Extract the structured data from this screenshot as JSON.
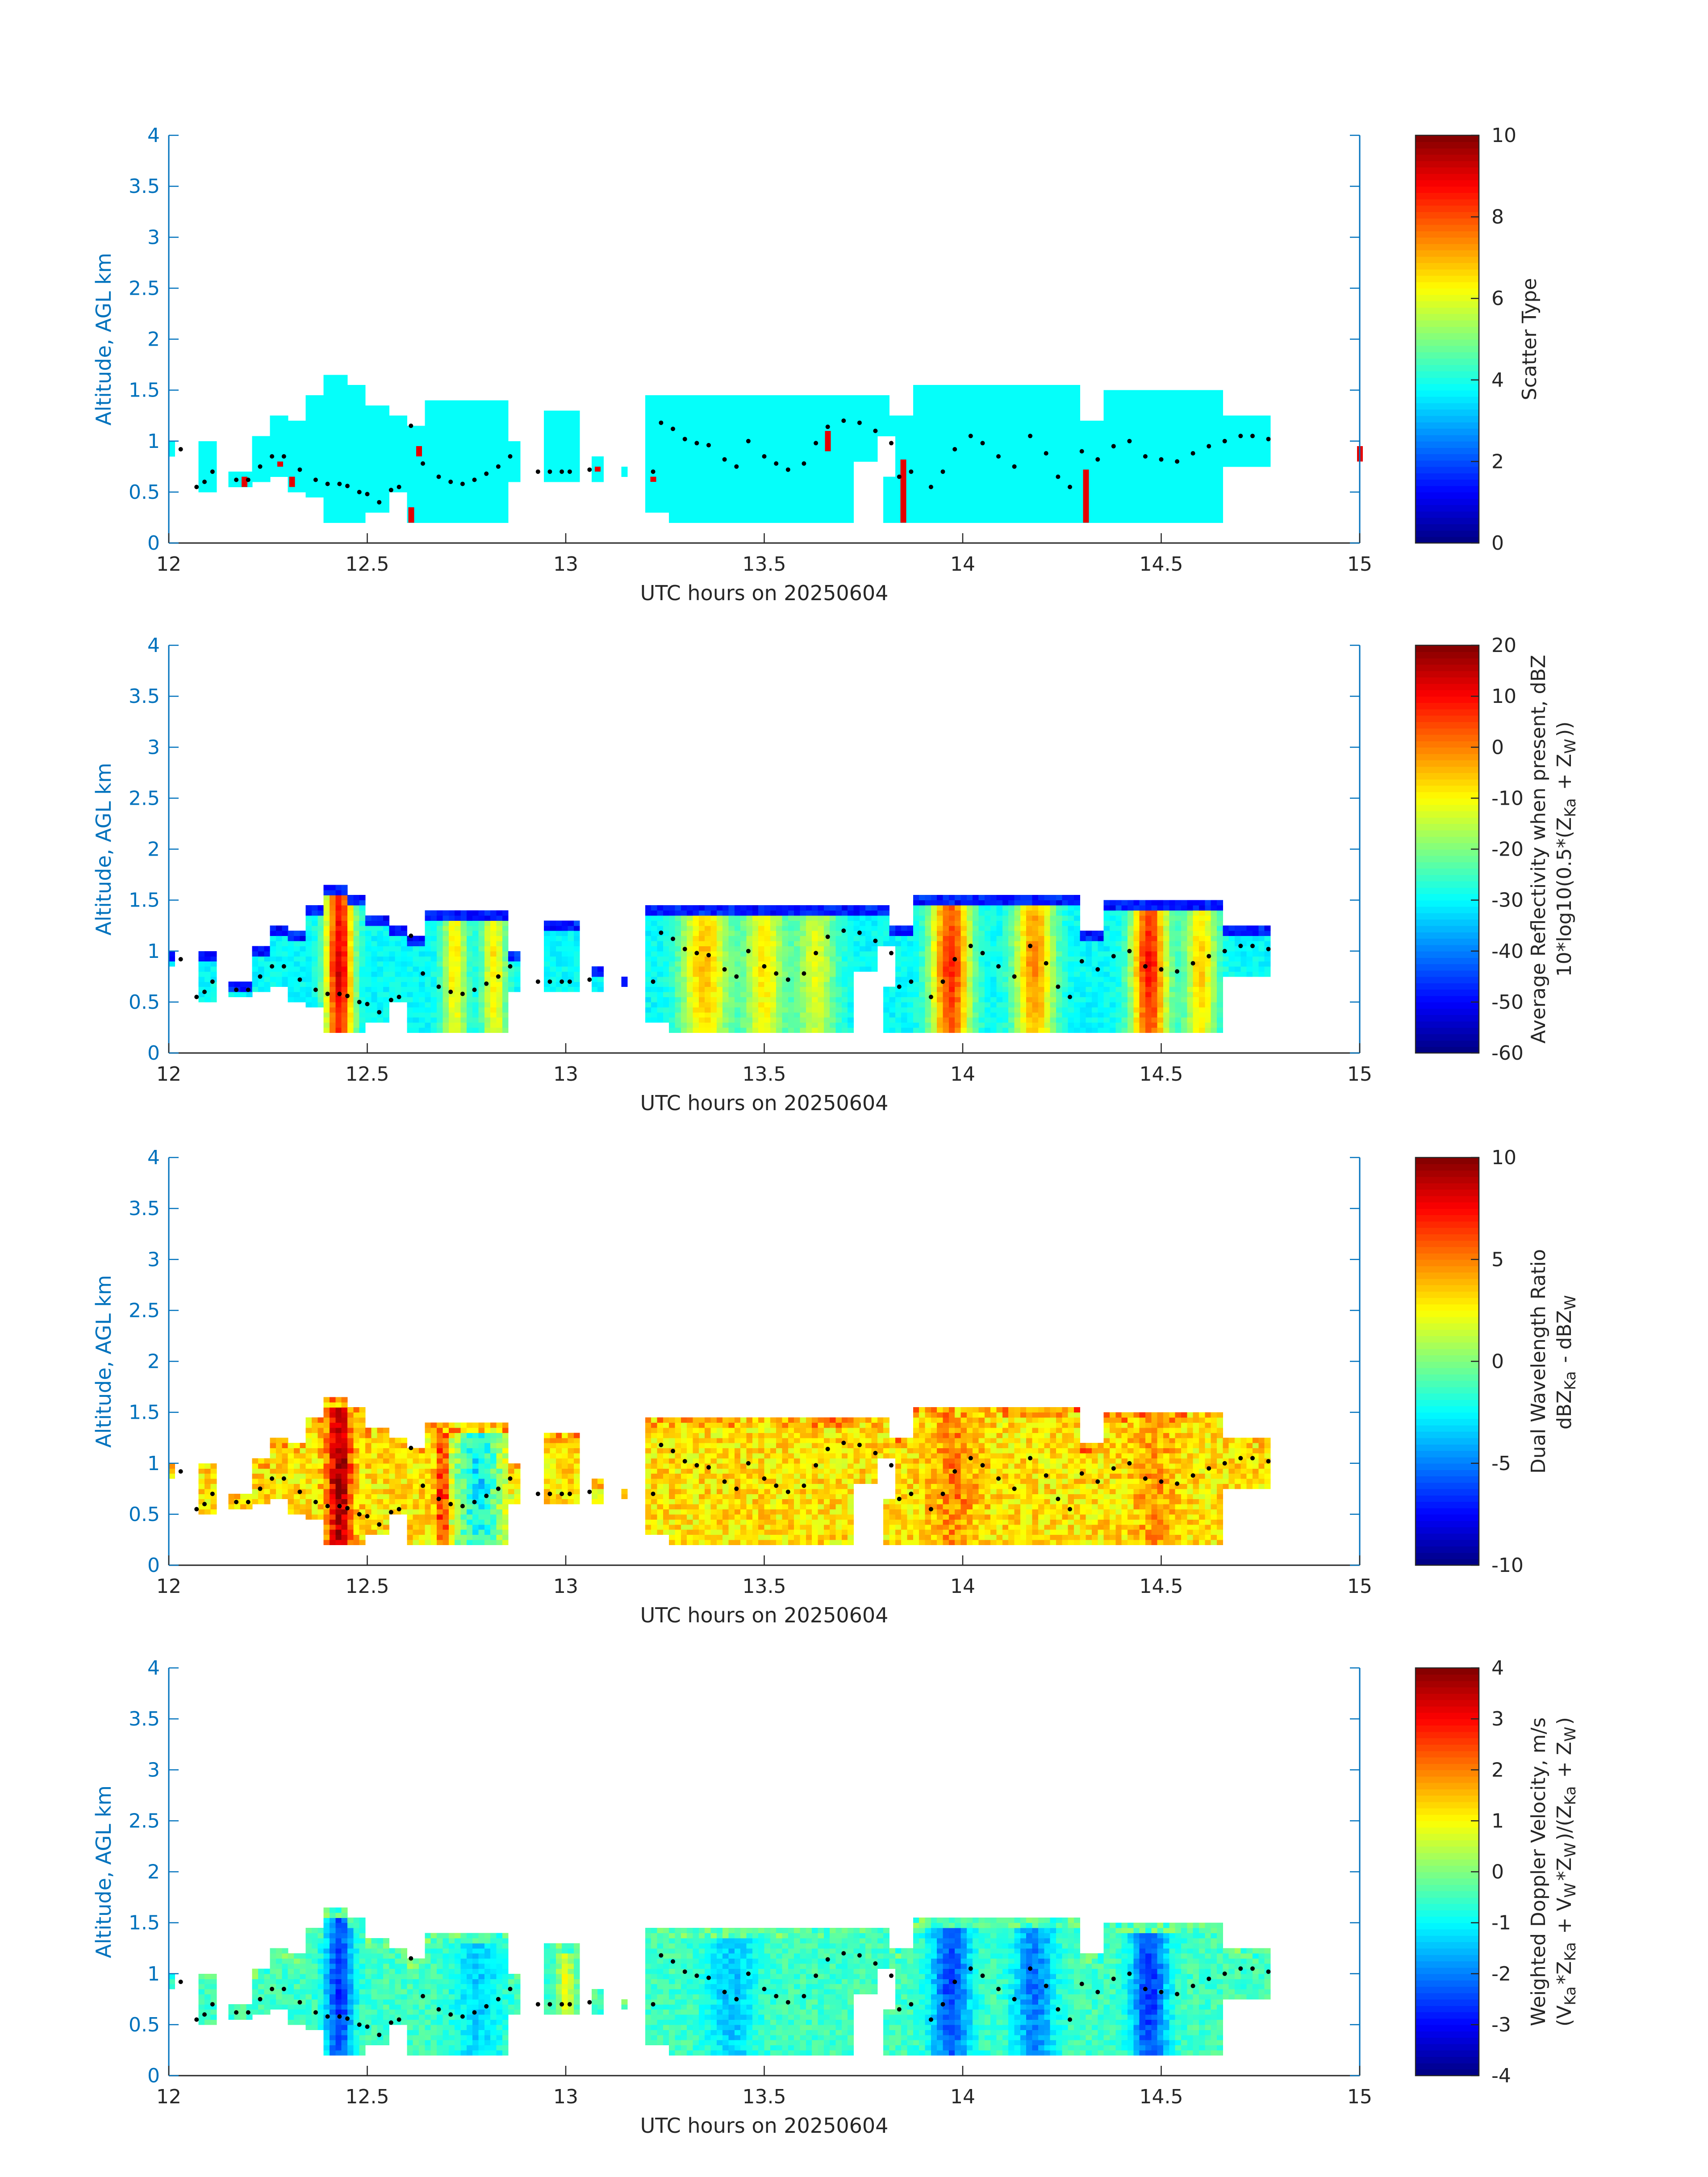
{
  "figure": {
    "xlabel": "UTC hours on 20250604",
    "ylabel": "Altitude, AGL km",
    "axis_color": "#0072bd",
    "text_color": "#262626"
  },
  "chart_data": [
    {
      "type": "heatmap",
      "xlim": [
        12,
        15
      ],
      "ylim": [
        0,
        4
      ],
      "x_ticks": [
        "12",
        "12.5",
        "13",
        "13.5",
        "14",
        "14.5",
        "15"
      ],
      "y_ticks": [
        "0",
        "0.5",
        "1",
        "1.5",
        "2",
        "2.5",
        "3",
        "3.5",
        "4"
      ],
      "colorbar": {
        "label": "Scatter Type",
        "label2": "",
        "min": 0,
        "max": 10,
        "ticks": [
          "0",
          "2",
          "4",
          "6",
          "8",
          "10"
        ]
      },
      "mode": "uniform",
      "uniform_value": 3.8,
      "spikes": [
        {
          "x": 12.19,
          "y0": 0.55,
          "y1": 0.65,
          "value": 9.0
        },
        {
          "x": 12.28,
          "y0": 0.75,
          "y1": 0.8,
          "value": 9.0
        },
        {
          "x": 12.31,
          "y0": 0.55,
          "y1": 0.65,
          "value": 9.0
        },
        {
          "x": 12.61,
          "y0": 0.2,
          "y1": 0.35,
          "value": 9.0
        },
        {
          "x": 12.63,
          "y0": 0.85,
          "y1": 0.95,
          "value": 9.0
        },
        {
          "x": 13.08,
          "y0": 0.7,
          "y1": 0.75,
          "value": 9.0
        },
        {
          "x": 13.22,
          "y0": 0.6,
          "y1": 0.65,
          "value": 9.0
        },
        {
          "x": 13.66,
          "y0": 0.9,
          "y1": 1.1,
          "value": 9.0
        },
        {
          "x": 13.85,
          "y0": 0.2,
          "y1": 0.82,
          "value": 9.0
        },
        {
          "x": 14.31,
          "y0": 0.2,
          "y1": 0.72,
          "value": 9.0
        },
        {
          "x": 15.0,
          "y0": 0.8,
          "y1": 0.95,
          "value": 9.0
        }
      ]
    },
    {
      "type": "heatmap",
      "xlim": [
        12,
        15
      ],
      "ylim": [
        0,
        4
      ],
      "x_ticks": [
        "12",
        "12.5",
        "13",
        "13.5",
        "14",
        "14.5",
        "15"
      ],
      "y_ticks": [
        "0",
        "0.5",
        "1",
        "1.5",
        "2",
        "2.5",
        "3",
        "3.5",
        "4"
      ],
      "colorbar": {
        "label": "Average Reflectivity when present, dBZ",
        "label2": "10*log10(0.5*(Z_Ka + Z_W))",
        "min": -60,
        "max": 20,
        "ticks": [
          "-60",
          "-50",
          "-40",
          "-30",
          "-20",
          "-10",
          "0",
          "10",
          "20"
        ]
      },
      "mode": "field",
      "seed": 11,
      "noise": 2.5,
      "edge_value": -48,
      "base_value": -30,
      "cores": [
        {
          "x": 12.43,
          "w": 0.035,
          "amp": 44
        },
        {
          "x": 12.72,
          "w": 0.03,
          "amp": 22
        },
        {
          "x": 12.82,
          "w": 0.03,
          "amp": 22
        },
        {
          "x": 13.35,
          "w": 0.06,
          "amp": 26
        },
        {
          "x": 13.5,
          "w": 0.05,
          "amp": 22
        },
        {
          "x": 13.63,
          "w": 0.05,
          "amp": 18
        },
        {
          "x": 13.97,
          "w": 0.05,
          "amp": 38
        },
        {
          "x": 14.18,
          "w": 0.05,
          "amp": 30
        },
        {
          "x": 14.47,
          "w": 0.045,
          "amp": 40
        },
        {
          "x": 14.6,
          "w": 0.04,
          "amp": 24
        }
      ]
    },
    {
      "type": "heatmap",
      "xlim": [
        12,
        15
      ],
      "ylim": [
        0,
        4
      ],
      "x_ticks": [
        "12",
        "12.5",
        "13",
        "13.5",
        "14",
        "14.5",
        "15"
      ],
      "y_ticks": [
        "0",
        "0.5",
        "1",
        "1.5",
        "2",
        "2.5",
        "3",
        "3.5",
        "4"
      ],
      "colorbar": {
        "label": "Dual Wavelength Ratio",
        "label2": "dBZ_Ka - dBZ_W",
        "min": -10,
        "max": 10,
        "ticks": [
          "-10",
          "-5",
          "0",
          "5",
          "10"
        ]
      },
      "mode": "field",
      "seed": 23,
      "noise": 1.5,
      "edge_value": 4,
      "base_value": 3,
      "cores": [
        {
          "x": 12.43,
          "w": 0.03,
          "amp": 7
        },
        {
          "x": 12.69,
          "w": 0.015,
          "amp": 5
        },
        {
          "x": 12.78,
          "w": 0.06,
          "amp": -6
        },
        {
          "x": 13.98,
          "w": 0.06,
          "amp": 2
        },
        {
          "x": 14.48,
          "w": 0.05,
          "amp": 1.5
        }
      ]
    },
    {
      "type": "heatmap",
      "xlim": [
        12,
        15
      ],
      "ylim": [
        0,
        4
      ],
      "x_ticks": [
        "12",
        "12.5",
        "13",
        "13.5",
        "14",
        "14.5",
        "15"
      ],
      "y_ticks": [
        "0",
        "0.5",
        "1",
        "1.5",
        "2",
        "2.5",
        "3",
        "3.5",
        "4"
      ],
      "colorbar": {
        "label": "Weighted Doppler Velocity, m/s",
        "label2": "(V_Ka*Z_Ka + V_W*Z_W)/(Z_Ka + Z_W)",
        "min": -4,
        "max": 4,
        "ticks": [
          "-4",
          "-3",
          "-2",
          "-1",
          "0",
          "1",
          "2",
          "3",
          "4"
        ]
      },
      "mode": "field",
      "seed": 37,
      "noise": 0.35,
      "edge_value": -0.3,
      "base_value": -0.5,
      "cores": [
        {
          "x": 12.43,
          "w": 0.035,
          "amp": -2.2
        },
        {
          "x": 12.78,
          "w": 0.06,
          "amp": -0.9
        },
        {
          "x": 13.0,
          "w": 0.02,
          "amp": 1.3
        },
        {
          "x": 13.42,
          "w": 0.06,
          "amp": -1.0
        },
        {
          "x": 13.97,
          "w": 0.05,
          "amp": -2.0
        },
        {
          "x": 14.18,
          "w": 0.05,
          "amp": -1.6
        },
        {
          "x": 14.47,
          "w": 0.045,
          "amp": -2.2
        }
      ]
    }
  ],
  "echo_mask": [
    {
      "x0": 12.0,
      "x1": 12.01,
      "y0": 0.85,
      "y1": 1.0
    },
    {
      "x0": 12.07,
      "x1": 12.12,
      "y0": 0.5,
      "y1": 1.0
    },
    {
      "x0": 12.15,
      "x1": 12.21,
      "y0": 0.55,
      "y1": 0.7
    },
    {
      "x0": 12.21,
      "x1": 12.26,
      "y0": 0.6,
      "y1": 1.05
    },
    {
      "x0": 12.26,
      "x1": 12.3,
      "y0": 0.65,
      "y1": 1.25
    },
    {
      "x0": 12.3,
      "x1": 12.34,
      "y0": 0.5,
      "y1": 1.2
    },
    {
      "x0": 12.34,
      "x1": 12.39,
      "y0": 0.45,
      "y1": 1.45
    },
    {
      "x0": 12.39,
      "x1": 12.45,
      "y0": 0.2,
      "y1": 1.65
    },
    {
      "x0": 12.45,
      "x1": 12.5,
      "y0": 0.2,
      "y1": 1.55
    },
    {
      "x0": 12.5,
      "x1": 12.55,
      "y0": 0.3,
      "y1": 1.35
    },
    {
      "x0": 12.55,
      "x1": 12.6,
      "y0": 0.5,
      "y1": 1.25
    },
    {
      "x0": 12.6,
      "x1": 12.65,
      "y0": 0.2,
      "y1": 1.15
    },
    {
      "x0": 12.65,
      "x1": 12.86,
      "y0": 0.2,
      "y1": 1.4
    },
    {
      "x0": 12.86,
      "x1": 12.88,
      "y0": 0.6,
      "y1": 1.0
    },
    {
      "x0": 12.94,
      "x1": 13.04,
      "y0": 0.6,
      "y1": 1.3
    },
    {
      "x0": 13.06,
      "x1": 13.09,
      "y0": 0.6,
      "y1": 0.85
    },
    {
      "x0": 13.14,
      "x1": 13.16,
      "y0": 0.65,
      "y1": 0.75
    },
    {
      "x0": 13.2,
      "x1": 13.26,
      "y0": 0.3,
      "y1": 1.45
    },
    {
      "x0": 13.26,
      "x1": 13.82,
      "y0": 0.2,
      "y1": 1.45
    },
    {
      "x0": 13.82,
      "x1": 13.87,
      "y0": 0.2,
      "y1": 1.25
    },
    {
      "x0": 13.87,
      "x1": 14.3,
      "y0": 0.2,
      "y1": 1.55
    },
    {
      "x0": 14.3,
      "x1": 14.36,
      "y0": 0.2,
      "y1": 1.2
    },
    {
      "x0": 14.36,
      "x1": 14.66,
      "y0": 0.2,
      "y1": 1.5
    },
    {
      "x0": 14.66,
      "x1": 14.78,
      "y0": 0.75,
      "y1": 1.25
    },
    {
      "x0": 14.995,
      "x1": 15.0,
      "y0": 0.75,
      "y1": 1.3
    }
  ],
  "echo_holes": [
    {
      "x0": 13.16,
      "x1": 13.2,
      "y0": 0.0,
      "y1": 4.0
    },
    {
      "x0": 13.72,
      "x1": 13.8,
      "y0": 0.2,
      "y1": 0.8
    },
    {
      "x0": 13.79,
      "x1": 13.83,
      "y0": 0.65,
      "y1": 1.05
    }
  ],
  "cloud_base_points": [
    [
      12.03,
      0.92
    ],
    [
      12.07,
      0.55
    ],
    [
      12.09,
      0.6
    ],
    [
      12.11,
      0.7
    ],
    [
      12.17,
      0.62
    ],
    [
      12.2,
      0.62
    ],
    [
      12.23,
      0.75
    ],
    [
      12.26,
      0.85
    ],
    [
      12.29,
      0.85
    ],
    [
      12.33,
      0.72
    ],
    [
      12.37,
      0.62
    ],
    [
      12.4,
      0.58
    ],
    [
      12.43,
      0.58
    ],
    [
      12.45,
      0.56
    ],
    [
      12.48,
      0.5
    ],
    [
      12.5,
      0.48
    ],
    [
      12.53,
      0.4
    ],
    [
      12.56,
      0.52
    ],
    [
      12.58,
      0.55
    ],
    [
      12.61,
      1.15
    ],
    [
      12.64,
      0.78
    ],
    [
      12.68,
      0.65
    ],
    [
      12.71,
      0.6
    ],
    [
      12.74,
      0.58
    ],
    [
      12.77,
      0.62
    ],
    [
      12.8,
      0.68
    ],
    [
      12.83,
      0.75
    ],
    [
      12.86,
      0.85
    ],
    [
      12.93,
      0.7
    ],
    [
      12.96,
      0.7
    ],
    [
      12.99,
      0.7
    ],
    [
      13.01,
      0.7
    ],
    [
      13.06,
      0.72
    ],
    [
      13.22,
      0.7
    ],
    [
      13.24,
      1.18
    ],
    [
      13.27,
      1.12
    ],
    [
      13.3,
      1.02
    ],
    [
      13.33,
      0.98
    ],
    [
      13.36,
      0.96
    ],
    [
      13.4,
      0.82
    ],
    [
      13.43,
      0.75
    ],
    [
      13.46,
      1.0
    ],
    [
      13.5,
      0.85
    ],
    [
      13.53,
      0.78
    ],
    [
      13.56,
      0.72
    ],
    [
      13.6,
      0.78
    ],
    [
      13.63,
      0.98
    ],
    [
      13.66,
      1.14
    ],
    [
      13.7,
      1.2
    ],
    [
      13.74,
      1.18
    ],
    [
      13.78,
      1.1
    ],
    [
      13.82,
      0.98
    ],
    [
      13.84,
      0.65
    ],
    [
      13.87,
      0.7
    ],
    [
      13.92,
      0.55
    ],
    [
      13.95,
      0.7
    ],
    [
      13.98,
      0.92
    ],
    [
      14.02,
      1.05
    ],
    [
      14.05,
      0.98
    ],
    [
      14.09,
      0.85
    ],
    [
      14.13,
      0.75
    ],
    [
      14.17,
      1.05
    ],
    [
      14.21,
      0.88
    ],
    [
      14.24,
      0.65
    ],
    [
      14.27,
      0.55
    ],
    [
      14.3,
      0.9
    ],
    [
      14.34,
      0.82
    ],
    [
      14.38,
      0.95
    ],
    [
      14.42,
      1.0
    ],
    [
      14.46,
      0.85
    ],
    [
      14.5,
      0.82
    ],
    [
      14.54,
      0.8
    ],
    [
      14.58,
      0.88
    ],
    [
      14.62,
      0.95
    ],
    [
      14.66,
      1.0
    ],
    [
      14.7,
      1.05
    ],
    [
      14.73,
      1.05
    ],
    [
      14.77,
      1.02
    ]
  ]
}
